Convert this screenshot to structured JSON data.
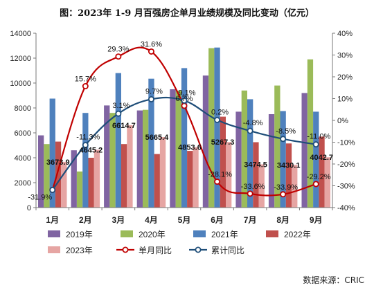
{
  "title": "图：2023年 1-9 月百强房企单月业绩规模及同比变动（亿元）",
  "source": "数据来源：CRIC",
  "chart_data": {
    "type": "bar",
    "categories": [
      "1月",
      "2月",
      "3月",
      "4月",
      "5月",
      "6月",
      "7月",
      "8月",
      "9月"
    ],
    "series": [
      {
        "name": "2019年",
        "kind": "bar",
        "axis": "left",
        "color": "#8064a2",
        "values": [
          5800,
          4600,
          8200,
          7800,
          9500,
          10600,
          7700,
          7500,
          9200
        ]
      },
      {
        "name": "2020年",
        "kind": "bar",
        "axis": "left",
        "color": "#9bbb59",
        "values": [
          5100,
          2900,
          7600,
          7850,
          9400,
          12800,
          9400,
          9800,
          11900
        ]
      },
      {
        "name": "2021年",
        "kind": "bar",
        "axis": "left",
        "color": "#4f81bd",
        "values": [
          8750,
          7600,
          10800,
          10350,
          11200,
          12850,
          8700,
          7750,
          7700
        ]
      },
      {
        "name": "2022年",
        "kind": "bar",
        "axis": "left",
        "color": "#c0504d",
        "values": [
          5300,
          4000,
          5100,
          4300,
          4550,
          7300,
          5250,
          5150,
          5700
        ]
      },
      {
        "name": "2023年",
        "kind": "bar",
        "axis": "left",
        "color": "#e6a5a3",
        "values": [
          3673.9,
          4645.2,
          6614.7,
          5665.4,
          4853.6,
          5267.3,
          3474.5,
          3430.1,
          4042.7
        ]
      },
      {
        "name": "单月同比",
        "kind": "line",
        "axis": "right",
        "color": "#c00000",
        "values": [
          -31.9,
          15.7,
          29.3,
          31.6,
          6.7,
          -28.1,
          -33.6,
          -33.9,
          -29.2
        ]
      },
      {
        "name": "累计同比",
        "kind": "line",
        "axis": "right",
        "color": "#1f4e79",
        "values": [
          -31.9,
          -11.3,
          3.1,
          9.7,
          9.1,
          0.2,
          -4.8,
          -8.5,
          -11.0
        ]
      }
    ],
    "bar_labels": [
      "3673.9",
      "4645.2",
      "6614.7",
      "5665.4",
      "4853.6",
      "5267.3",
      "3474.5",
      "3430.1",
      "4042.7"
    ],
    "monthly_labels": [
      "-31.9%",
      "15.7%",
      "29.3%",
      "31.6%",
      "6.7%",
      "-28.1%",
      "-33.6%",
      "-33.9%",
      "-29.2%"
    ],
    "cumulative_labels": [
      "",
      "-11.3%",
      "3.1%",
      "9.7%",
      "9.1%",
      "0.2%",
      "-4.8%",
      "-8.5%",
      "-11.0%"
    ],
    "y_left": {
      "min": 0,
      "max": 14000,
      "ticks": [
        0,
        2000,
        4000,
        6000,
        8000,
        10000,
        12000,
        14000
      ]
    },
    "y_right": {
      "min": -40,
      "max": 40,
      "ticks": [
        "-40%",
        "-30%",
        "-20%",
        "-10%",
        "0%",
        "10%",
        "20%",
        "30%",
        "40%"
      ]
    },
    "grid": false,
    "legend_position": "bottom"
  }
}
